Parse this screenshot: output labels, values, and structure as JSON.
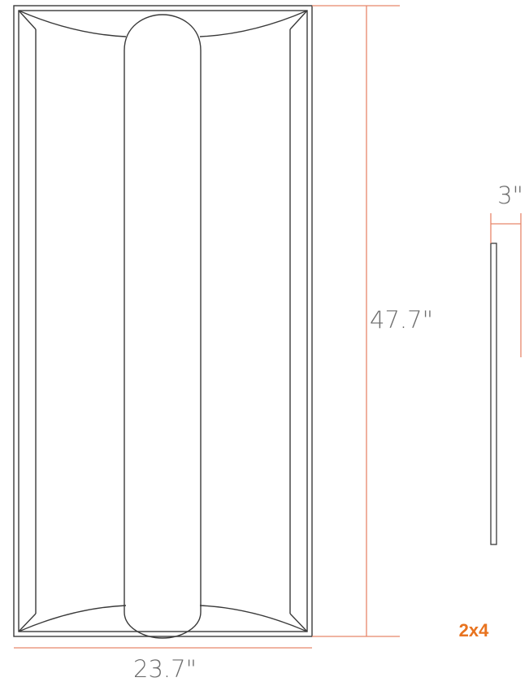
{
  "diagram": {
    "width_label": "23.7\"",
    "height_label": "47.7\"",
    "depth_label": "3\"",
    "size_label": "2x4"
  },
  "colors": {
    "outline": "#3a3a3a",
    "dimension_line": "#e8866a",
    "accent": "#e8731f",
    "dimension_text": "#6d6d6d"
  }
}
